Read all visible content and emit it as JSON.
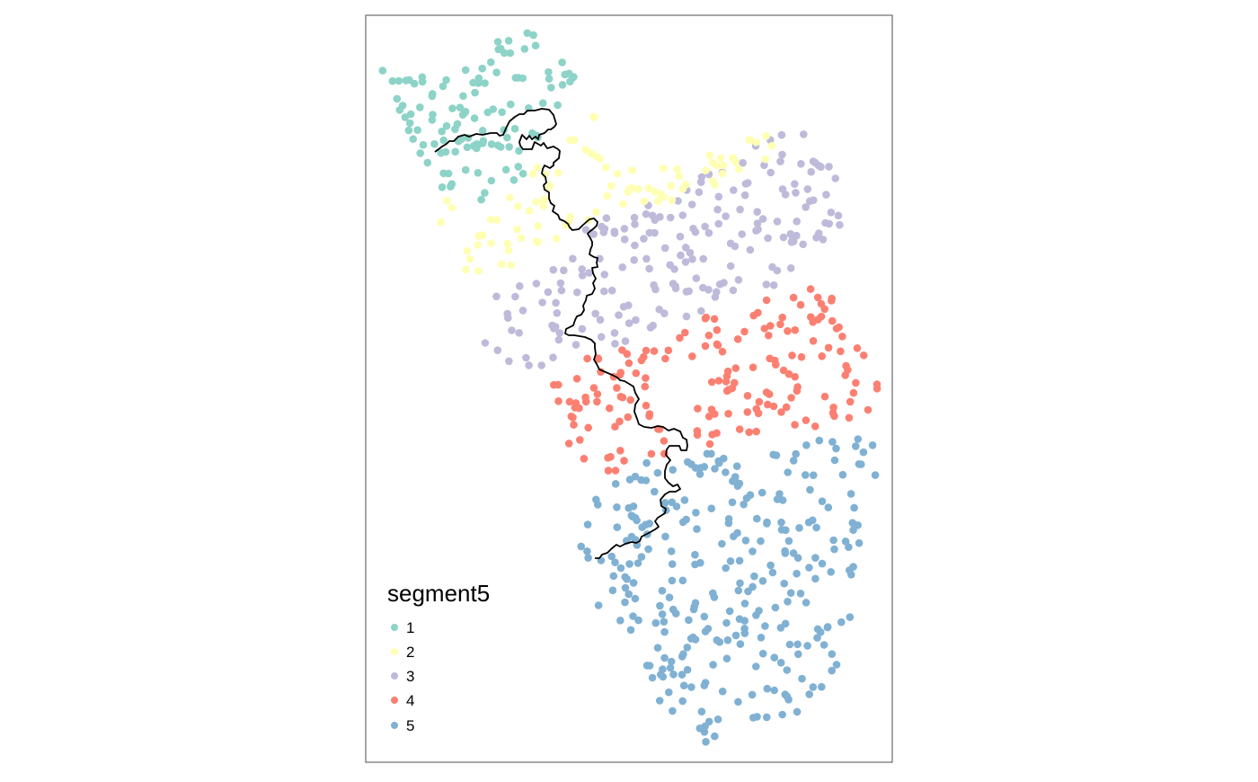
{
  "map": {
    "legend": {
      "title": "segment5",
      "classes": [
        {
          "label": "1",
          "color": "#8dd3c7"
        },
        {
          "label": "2",
          "color": "#ffffb3"
        },
        {
          "label": "3",
          "color": "#bebada"
        },
        {
          "label": "4",
          "color": "#fb8072"
        },
        {
          "label": "5",
          "color": "#80b1d3"
        }
      ]
    },
    "river_color": "#000000",
    "frame_color": "#4d4d4d"
  }
}
